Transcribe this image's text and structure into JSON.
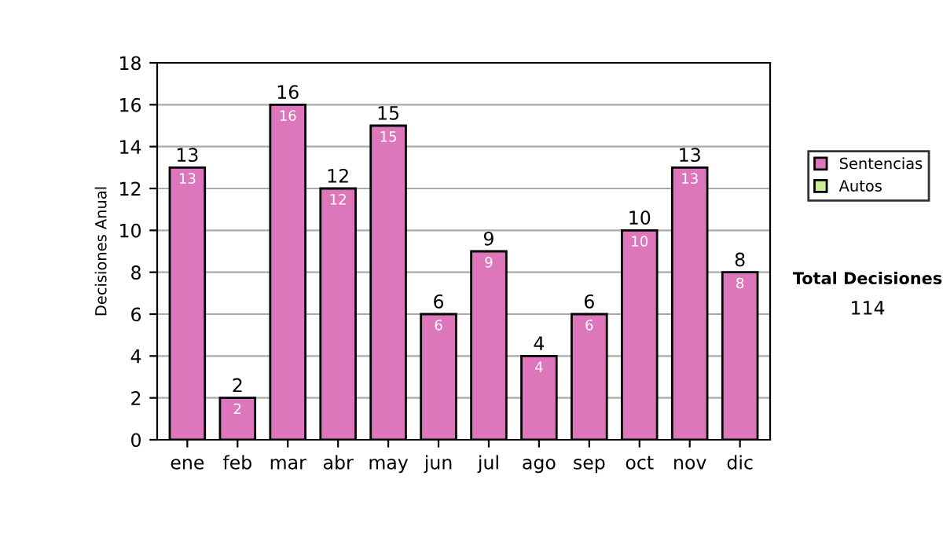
{
  "chart_data": {
    "type": "bar",
    "stacked": true,
    "ylabel": "Decisiones Anual",
    "categories": [
      "ene",
      "feb",
      "mar",
      "abr",
      "may",
      "jun",
      "jul",
      "ago",
      "sep",
      "oct",
      "nov",
      "dic"
    ],
    "series": [
      {
        "name": "Sentencias",
        "color": "#dd77bb",
        "values": [
          13,
          2,
          16,
          12,
          15,
          6,
          9,
          4,
          6,
          10,
          13,
          8
        ],
        "value_labels": [
          "13",
          "2",
          "16",
          "12",
          "15",
          "6",
          "9",
          "4",
          "6",
          "10",
          "13",
          "8"
        ]
      },
      {
        "name": "Autos",
        "color": "#ccee99",
        "values": [
          0,
          0,
          0,
          0,
          0,
          0,
          0,
          0,
          0,
          0,
          0,
          0
        ]
      }
    ],
    "totals": [
      "13",
      "2",
      "16",
      "12",
      "15",
      "6",
      "9",
      "4",
      "6",
      "10",
      "13",
      "8"
    ],
    "ylim": [
      0,
      18
    ],
    "yticks": [
      0,
      2,
      4,
      6,
      8,
      10,
      12,
      14,
      16,
      18
    ],
    "grid": "y",
    "legend": "right",
    "annotations": [
      "Total Decisiones",
      "114"
    ]
  }
}
